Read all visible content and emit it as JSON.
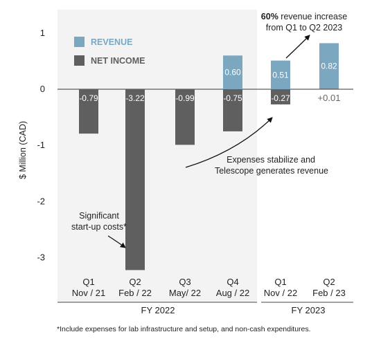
{
  "chart_data": {
    "type": "bar",
    "ylabel": "$ Million (CAD)",
    "ylim": [
      -3.2,
      1.0
    ],
    "yticks": [
      1,
      0,
      -1,
      -2,
      -3
    ],
    "grid": false,
    "legend_position": "top-left",
    "colors": {
      "revenue": "#7ba7c1",
      "net_income": "#5f5f5f",
      "shade": "#f3f3f3"
    },
    "categories": [
      {
        "quarter": "Q1",
        "date": "Nov / 21"
      },
      {
        "quarter": "Q2",
        "date": "Feb / 22"
      },
      {
        "quarter": "Q3",
        "date": "May/ 22"
      },
      {
        "quarter": "Q4",
        "date": "Aug / 22"
      },
      {
        "quarter": "Q1",
        "date": "Nov / 22"
      },
      {
        "quarter": "Q2",
        "date": "Feb / 23"
      }
    ],
    "series": [
      {
        "name": "REVENUE",
        "values": [
          null,
          null,
          null,
          0.6,
          0.51,
          0.82
        ],
        "labels": [
          "",
          "",
          "",
          "0.60",
          "0.51",
          "0.82"
        ]
      },
      {
        "name": "NET INCOME",
        "values": [
          -0.79,
          -3.22,
          -0.99,
          -0.75,
          -0.27,
          0.01
        ],
        "labels": [
          "-0.79",
          "-3.22",
          "-0.99",
          "-0.75",
          "-0.27",
          "+0.01"
        ]
      }
    ],
    "fiscal_years": [
      {
        "label": "FY 2022",
        "from": 0,
        "to": 3
      },
      {
        "label": "FY 2023",
        "from": 4,
        "to": 5
      }
    ],
    "annotations": {
      "top_bold": "60%",
      "top_line1": " revenue increase",
      "top_line2": "from Q1 to Q2 2023",
      "mid_line1": "Expenses stabilize and",
      "mid_line2": "Telescope generates revenue",
      "low_line1": "Significant",
      "low_line2": "start-up costs*"
    },
    "footnote": "*Include expenses for lab infrastructure and setup, and non-cash expenditures."
  }
}
